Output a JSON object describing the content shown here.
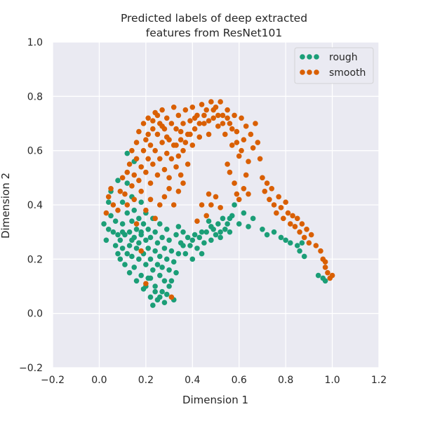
{
  "chart_data": {
    "type": "scatter",
    "title_lines": [
      "Predicted labels of deep extracted",
      "features from ResNet101"
    ],
    "xlabel": "Dimension 1",
    "ylabel": "Dimension 2",
    "xlim": [
      -0.2,
      1.2
    ],
    "ylim": [
      -0.2,
      1.0
    ],
    "xticks": [
      "−0.2",
      "0.0",
      "0.2",
      "0.4",
      "0.6",
      "0.8",
      "1.0",
      "1.2"
    ],
    "yticks": [
      "−0.2",
      "0.0",
      "0.2",
      "0.4",
      "0.6",
      "0.8",
      "1.0"
    ],
    "grid": true,
    "legend_position": "top-right",
    "series": [
      {
        "name": "rough",
        "color": "#1b9e77",
        "points": [
          [
            0.02,
            0.33
          ],
          [
            0.03,
            0.27
          ],
          [
            0.04,
            0.31
          ],
          [
            0.05,
            0.36
          ],
          [
            0.04,
            0.41
          ],
          [
            0.05,
            0.45
          ],
          [
            0.06,
            0.3
          ],
          [
            0.07,
            0.25
          ],
          [
            0.07,
            0.34
          ],
          [
            0.08,
            0.22
          ],
          [
            0.08,
            0.29
          ],
          [
            0.09,
            0.27
          ],
          [
            0.09,
            0.2
          ],
          [
            0.1,
            0.33
          ],
          [
            0.1,
            0.24
          ],
          [
            0.1,
            0.41
          ],
          [
            0.11,
            0.18
          ],
          [
            0.11,
            0.29
          ],
          [
            0.12,
            0.22
          ],
          [
            0.12,
            0.37
          ],
          [
            0.12,
            0.48
          ],
          [
            0.13,
            0.3
          ],
          [
            0.13,
            0.15
          ],
          [
            0.13,
            0.25
          ],
          [
            0.14,
            0.34
          ],
          [
            0.14,
            0.21
          ],
          [
            0.14,
            0.43
          ],
          [
            0.15,
            0.28
          ],
          [
            0.15,
            0.17
          ],
          [
            0.15,
            0.38
          ],
          [
            0.16,
            0.24
          ],
          [
            0.16,
            0.31
          ],
          [
            0.16,
            0.12
          ],
          [
            0.17,
            0.2
          ],
          [
            0.17,
            0.35
          ],
          [
            0.17,
            0.26
          ],
          [
            0.18,
            0.14
          ],
          [
            0.18,
            0.29
          ],
          [
            0.18,
            0.41
          ],
          [
            0.19,
            0.22
          ],
          [
            0.19,
            0.33
          ],
          [
            0.19,
            0.09
          ],
          [
            0.2,
            0.18
          ],
          [
            0.2,
            0.27
          ],
          [
            0.2,
            0.37
          ],
          [
            0.21,
            0.24
          ],
          [
            0.21,
            0.13
          ],
          [
            0.21,
            0.31
          ],
          [
            0.22,
            0.06
          ],
          [
            0.22,
            0.2
          ],
          [
            0.22,
            0.28
          ],
          [
            0.23,
            0.16
          ],
          [
            0.23,
            0.35
          ],
          [
            0.23,
            0.03
          ],
          [
            0.24,
            0.23
          ],
          [
            0.24,
            0.1
          ],
          [
            0.24,
            0.3
          ],
          [
            0.25,
            0.18
          ],
          [
            0.25,
            0.05
          ],
          [
            0.25,
            0.26
          ],
          [
            0.26,
            0.14
          ],
          [
            0.26,
            0.33
          ],
          [
            0.26,
            0.21
          ],
          [
            0.27,
            0.08
          ],
          [
            0.27,
            0.28
          ],
          [
            0.27,
            0.17
          ],
          [
            0.28,
            0.04
          ],
          [
            0.28,
            0.24
          ],
          [
            0.28,
            0.12
          ],
          [
            0.29,
            0.2
          ],
          [
            0.29,
            0.31
          ],
          [
            0.29,
            0.07
          ],
          [
            0.3,
            0.16
          ],
          [
            0.3,
            0.27
          ],
          [
            0.31,
            0.12
          ],
          [
            0.31,
            0.23
          ],
          [
            0.32,
            0.19
          ],
          [
            0.32,
            0.05
          ],
          [
            0.33,
            0.29
          ],
          [
            0.33,
            0.15
          ],
          [
            0.34,
            0.22
          ],
          [
            0.34,
            0.32
          ],
          [
            0.35,
            0.26
          ],
          [
            0.36,
            0.3
          ],
          [
            0.37,
            0.22
          ],
          [
            0.38,
            0.28
          ],
          [
            0.39,
            0.25
          ],
          [
            0.4,
            0.2
          ],
          [
            0.41,
            0.29
          ],
          [
            0.42,
            0.24
          ],
          [
            0.43,
            0.28
          ],
          [
            0.44,
            0.22
          ],
          [
            0.45,
            0.26
          ],
          [
            0.46,
            0.3
          ],
          [
            0.47,
            0.34
          ],
          [
            0.48,
            0.27
          ],
          [
            0.49,
            0.31
          ],
          [
            0.5,
            0.29
          ],
          [
            0.51,
            0.33
          ],
          [
            0.52,
            0.3
          ],
          [
            0.53,
            0.35
          ],
          [
            0.54,
            0.31
          ],
          [
            0.55,
            0.33
          ],
          [
            0.56,
            0.3
          ],
          [
            0.57,
            0.36
          ],
          [
            0.58,
            0.4
          ],
          [
            0.6,
            0.33
          ],
          [
            0.62,
            0.37
          ],
          [
            0.64,
            0.32
          ],
          [
            0.66,
            0.35
          ],
          [
            0.7,
            0.31
          ],
          [
            0.72,
            0.29
          ],
          [
            0.75,
            0.3
          ],
          [
            0.78,
            0.28
          ],
          [
            0.8,
            0.27
          ],
          [
            0.82,
            0.26
          ],
          [
            0.85,
            0.25
          ],
          [
            0.86,
            0.23
          ],
          [
            0.88,
            0.21
          ],
          [
            0.87,
            0.26
          ],
          [
            0.94,
            0.14
          ],
          [
            0.96,
            0.13
          ],
          [
            0.97,
            0.12
          ],
          [
            0.12,
            0.59
          ],
          [
            0.15,
            0.56
          ],
          [
            0.08,
            0.49
          ],
          [
            0.2,
            0.1
          ],
          [
            0.24,
            0.08
          ],
          [
            0.3,
            0.1
          ],
          [
            0.26,
            0.06
          ],
          [
            0.22,
            0.13
          ],
          [
            0.18,
            0.3
          ],
          [
            0.14,
            0.27
          ],
          [
            0.1,
            0.3
          ],
          [
            0.36,
            0.25
          ],
          [
            0.4,
            0.27
          ],
          [
            0.44,
            0.3
          ],
          [
            0.48,
            0.32
          ],
          [
            0.52,
            0.28
          ],
          [
            0.56,
            0.35
          ]
        ]
      },
      {
        "name": "smooth",
        "color": "#d95f02",
        "points": [
          [
            0.03,
            0.37
          ],
          [
            0.04,
            0.43
          ],
          [
            0.05,
            0.46
          ],
          [
            0.06,
            0.4
          ],
          [
            0.08,
            0.38
          ],
          [
            0.09,
            0.45
          ],
          [
            0.1,
            0.5
          ],
          [
            0.11,
            0.44
          ],
          [
            0.12,
            0.52
          ],
          [
            0.12,
            0.4
          ],
          [
            0.13,
            0.55
          ],
          [
            0.14,
            0.47
          ],
          [
            0.14,
            0.6
          ],
          [
            0.15,
            0.51
          ],
          [
            0.15,
            0.42
          ],
          [
            0.16,
            0.57
          ],
          [
            0.16,
            0.63
          ],
          [
            0.17,
            0.49
          ],
          [
            0.17,
            0.67
          ],
          [
            0.18,
            0.54
          ],
          [
            0.18,
            0.45
          ],
          [
            0.19,
            0.6
          ],
          [
            0.19,
            0.7
          ],
          [
            0.2,
            0.52
          ],
          [
            0.2,
            0.64
          ],
          [
            0.21,
            0.57
          ],
          [
            0.21,
            0.72
          ],
          [
            0.22,
            0.48
          ],
          [
            0.22,
            0.62
          ],
          [
            0.23,
            0.68
          ],
          [
            0.23,
            0.55
          ],
          [
            0.24,
            0.74
          ],
          [
            0.24,
            0.6
          ],
          [
            0.25,
            0.66
          ],
          [
            0.25,
            0.51
          ],
          [
            0.26,
            0.7
          ],
          [
            0.26,
            0.57
          ],
          [
            0.27,
            0.63
          ],
          [
            0.27,
            0.75
          ],
          [
            0.28,
            0.53
          ],
          [
            0.28,
            0.68
          ],
          [
            0.29,
            0.59
          ],
          [
            0.29,
            0.72
          ],
          [
            0.3,
            0.64
          ],
          [
            0.3,
            0.5
          ],
          [
            0.31,
            0.7
          ],
          [
            0.31,
            0.57
          ],
          [
            0.32,
            0.76
          ],
          [
            0.32,
            0.62
          ],
          [
            0.33,
            0.54
          ],
          [
            0.33,
            0.68
          ],
          [
            0.34,
            0.73
          ],
          [
            0.34,
            0.58
          ],
          [
            0.35,
            0.64
          ],
          [
            0.35,
            0.51
          ],
          [
            0.36,
            0.7
          ],
          [
            0.36,
            0.6
          ],
          [
            0.37,
            0.75
          ],
          [
            0.38,
            0.66
          ],
          [
            0.38,
            0.55
          ],
          [
            0.39,
            0.71
          ],
          [
            0.4,
            0.62
          ],
          [
            0.4,
            0.76
          ],
          [
            0.41,
            0.68
          ],
          [
            0.42,
            0.73
          ],
          [
            0.43,
            0.65
          ],
          [
            0.44,
            0.77
          ],
          [
            0.45,
            0.7
          ],
          [
            0.46,
            0.75
          ],
          [
            0.47,
            0.66
          ],
          [
            0.48,
            0.78
          ],
          [
            0.49,
            0.72
          ],
          [
            0.5,
            0.76
          ],
          [
            0.51,
            0.69
          ],
          [
            0.52,
            0.78
          ],
          [
            0.53,
            0.73
          ],
          [
            0.54,
            0.66
          ],
          [
            0.55,
            0.75
          ],
          [
            0.56,
            0.7
          ],
          [
            0.57,
            0.62
          ],
          [
            0.58,
            0.73
          ],
          [
            0.59,
            0.67
          ],
          [
            0.6,
            0.58
          ],
          [
            0.61,
            0.72
          ],
          [
            0.62,
            0.64
          ],
          [
            0.63,
            0.69
          ],
          [
            0.64,
            0.56
          ],
          [
            0.65,
            0.66
          ],
          [
            0.66,
            0.61
          ],
          [
            0.67,
            0.7
          ],
          [
            0.68,
            0.63
          ],
          [
            0.69,
            0.57
          ],
          [
            0.7,
            0.5
          ],
          [
            0.71,
            0.45
          ],
          [
            0.72,
            0.48
          ],
          [
            0.73,
            0.42
          ],
          [
            0.74,
            0.46
          ],
          [
            0.75,
            0.4
          ],
          [
            0.76,
            0.37
          ],
          [
            0.77,
            0.43
          ],
          [
            0.78,
            0.39
          ],
          [
            0.79,
            0.35
          ],
          [
            0.8,
            0.41
          ],
          [
            0.81,
            0.37
          ],
          [
            0.82,
            0.33
          ],
          [
            0.83,
            0.36
          ],
          [
            0.84,
            0.32
          ],
          [
            0.85,
            0.35
          ],
          [
            0.86,
            0.3
          ],
          [
            0.87,
            0.33
          ],
          [
            0.88,
            0.28
          ],
          [
            0.89,
            0.31
          ],
          [
            0.9,
            0.26
          ],
          [
            0.91,
            0.29
          ],
          [
            0.93,
            0.25
          ],
          [
            0.95,
            0.23
          ],
          [
            0.96,
            0.2
          ],
          [
            0.97,
            0.17
          ],
          [
            0.98,
            0.15
          ],
          [
            0.99,
            0.13
          ],
          [
            1.0,
            0.14
          ],
          [
            0.97,
            0.19
          ],
          [
            0.59,
            0.44
          ],
          [
            0.6,
            0.42
          ],
          [
            0.58,
            0.48
          ],
          [
            0.62,
            0.46
          ],
          [
            0.64,
            0.44
          ],
          [
            0.56,
            0.52
          ],
          [
            0.55,
            0.55
          ],
          [
            0.63,
            0.51
          ],
          [
            0.47,
            0.44
          ],
          [
            0.48,
            0.4
          ],
          [
            0.5,
            0.43
          ],
          [
            0.52,
            0.39
          ],
          [
            0.46,
            0.36
          ],
          [
            0.44,
            0.4
          ],
          [
            0.42,
            0.34
          ],
          [
            0.28,
            0.43
          ],
          [
            0.26,
            0.4
          ],
          [
            0.24,
            0.35
          ],
          [
            0.22,
            0.42
          ],
          [
            0.2,
            0.38
          ],
          [
            0.34,
            0.45
          ],
          [
            0.32,
            0.4
          ],
          [
            0.36,
            0.48
          ],
          [
            0.3,
            0.46
          ],
          [
            0.18,
            0.23
          ],
          [
            0.2,
            0.11
          ],
          [
            0.31,
            0.06
          ],
          [
            0.16,
            0.33
          ],
          [
            0.21,
            0.66
          ],
          [
            0.23,
            0.71
          ],
          [
            0.25,
            0.73
          ],
          [
            0.27,
            0.69
          ],
          [
            0.29,
            0.65
          ],
          [
            0.33,
            0.62
          ],
          [
            0.35,
            0.67
          ],
          [
            0.37,
            0.63
          ],
          [
            0.39,
            0.66
          ],
          [
            0.41,
            0.72
          ],
          [
            0.43,
            0.7
          ],
          [
            0.45,
            0.73
          ],
          [
            0.47,
            0.71
          ],
          [
            0.49,
            0.75
          ],
          [
            0.51,
            0.73
          ],
          [
            0.53,
            0.7
          ],
          [
            0.55,
            0.72
          ],
          [
            0.57,
            0.68
          ],
          [
            0.59,
            0.63
          ],
          [
            0.61,
            0.6
          ]
        ]
      }
    ]
  }
}
